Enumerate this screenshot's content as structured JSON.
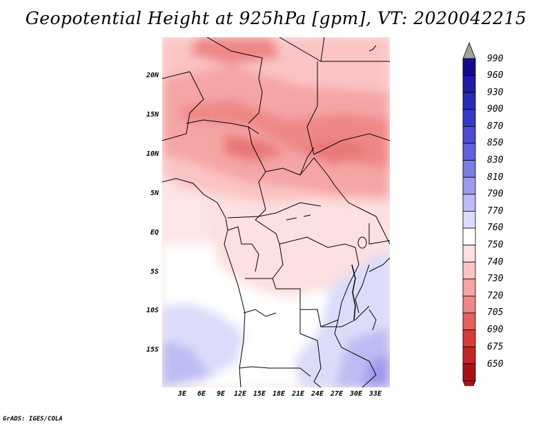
{
  "title": "Geopotential Height at 925hPa [gpm], VT: 2020042215",
  "lat_labels": [
    "20N",
    "15N",
    "10N",
    "5N",
    "EQ",
    "5S",
    "10S",
    "15S"
  ],
  "lon_labels": [
    "3E",
    "6E",
    "9E",
    "12E",
    "15E",
    "18E",
    "21E",
    "24E",
    "27E",
    "30E",
    "33E"
  ],
  "colorbar": {
    "levels": [
      "990",
      "960",
      "930",
      "900",
      "870",
      "850",
      "830",
      "810",
      "790",
      "770",
      "760",
      "750",
      "740",
      "730",
      "720",
      "705",
      "690",
      "675",
      "650"
    ],
    "top_arrow_color": "#a0a0a0",
    "bottom_arrow_color": "#b0101a",
    "colors": [
      "#130d8c",
      "#211aa6",
      "#2a2ab6",
      "#3838c8",
      "#4c4cd4",
      "#6262dc",
      "#7c7ce4",
      "#9c9cee",
      "#bcbcf4",
      "#dcdcfa",
      "#ffffff",
      "#fde0e0",
      "#fbc4c4",
      "#f5a5a5",
      "#ef8787",
      "#e56060",
      "#d83c3c",
      "#c42424",
      "#a81216"
    ]
  },
  "credit": "GrADS: IGES/COLA"
}
